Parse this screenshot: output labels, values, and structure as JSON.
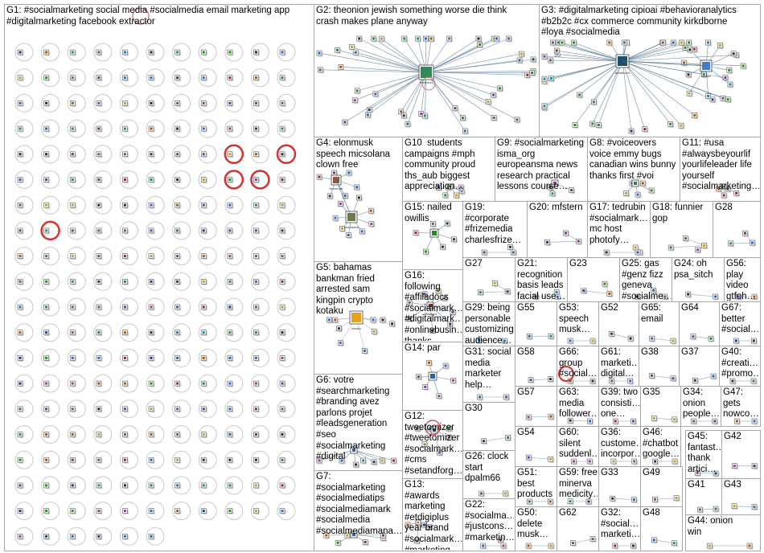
{
  "groups": [
    {
      "id": "G1",
      "label": "G1: #socialmarketing social media #socialmedia email marketing app\n#digitalmarketing facebook extractor"
    },
    {
      "id": "G2",
      "label": "G2: theonion jewish something worse die think\ncrash makes plane anyway"
    },
    {
      "id": "G3",
      "label": "G3: #digitalmarketing cipioai #behavioranalytics\n#b2b2c #cx commerce community kirkdborne\n#loya #socialmedia"
    },
    {
      "id": "G4",
      "label": "G4: elonmusk\nspeech micsolana\nclown free"
    },
    {
      "id": "G10",
      "label": "G10  students\ncampaigns #mph\ncommunity proud\nths_aub biggest\nappreciation…"
    },
    {
      "id": "G9",
      "label": "G9: #socialmarketing\nisma_org\neuropeansma news\nresearch practical\nlessons course…"
    },
    {
      "id": "G8",
      "label": "G8: #voiceovers\nvoice emmy bugs\ncanadian wins bunny\nthanks first #voi"
    },
    {
      "id": "G11",
      "label": "G11: #usa\n#alwaysbeyourlif\nyourlifeleader life\nyourself\n#socialmarketing…"
    },
    {
      "id": "G15",
      "label": "G15: nailed\nowillis"
    },
    {
      "id": "G19",
      "label": "G19:\n#corporate\n#frizemedia\ncharlesfrize…"
    },
    {
      "id": "G20",
      "label": "G20: mfstern"
    },
    {
      "id": "G17",
      "label": "G17: tedrubin\n#socialmark…\nmc host\nphotofy…"
    },
    {
      "id": "G18",
      "label": "G18: funnier\ngop"
    },
    {
      "id": "G28",
      "label": "G28"
    },
    {
      "id": "G5",
      "label": "G5: bahamas\nbankman fried\narrested sam\nkingpin crypto\nkotaku"
    },
    {
      "id": "G16",
      "label": "G16: following\n#affiladocs\n#socialmark…\n#digitalmark…\n#onlinebusin…\nthanks"
    },
    {
      "id": "G27",
      "label": "G27"
    },
    {
      "id": "G21",
      "label": "G21:\nrecognition\nbasis leads\nfacial use…"
    },
    {
      "id": "G23",
      "label": "G23"
    },
    {
      "id": "G25",
      "label": "G25: gas\n#genz fizz\ngeneva\n#socialme…"
    },
    {
      "id": "G24",
      "label": "G24: oh\npsa_sitch"
    },
    {
      "id": "G56",
      "label": "G56:\nplay\nvideo\ngtfoh…"
    },
    {
      "id": "G29",
      "label": "G29: being\npersonable\ncustomizing\naudience…"
    },
    {
      "id": "G55",
      "label": "G55"
    },
    {
      "id": "G53",
      "label": "G53:\nspeech\nmusk…"
    },
    {
      "id": "G52",
      "label": "G52"
    },
    {
      "id": "G65",
      "label": "G65:\nemail"
    },
    {
      "id": "G64",
      "label": "G64"
    },
    {
      "id": "G67",
      "label": "G67:\nbetter\n#social…"
    },
    {
      "id": "G14",
      "label": "G14: par"
    },
    {
      "id": "G31",
      "label": "G31: social\nmedia\nmarketer\nhelp…"
    },
    {
      "id": "G58",
      "label": "G58"
    },
    {
      "id": "G66",
      "label": "G66:\ngroup\n#social…"
    },
    {
      "id": "G61",
      "label": "G61:\nmarketi…\ndigital…"
    },
    {
      "id": "G38",
      "label": "G38"
    },
    {
      "id": "G37",
      "label": "G37"
    },
    {
      "id": "G40",
      "label": "G40:\n#creati…\n#promo…"
    },
    {
      "id": "G6",
      "label": "G6: votre\n#searchmarketing\n#branding avez\nparlons projet\n#leadsgeneration\n#seo\n#socialmarketing\n#digital"
    },
    {
      "id": "G57",
      "label": "G57"
    },
    {
      "id": "G63",
      "label": "G63:\nmedia\nfollower…"
    },
    {
      "id": "G39",
      "label": "G39: two\nconsisti…\none…"
    },
    {
      "id": "G35",
      "label": "G35"
    },
    {
      "id": "G34",
      "label": "G34:\nonion\npeople…"
    },
    {
      "id": "G47",
      "label": "G47:\ngets\nnowco…"
    },
    {
      "id": "G30",
      "label": "G30"
    },
    {
      "id": "G12",
      "label": "G12:\ntweetomizer\n#tweetomizer\n#socialmark…\n#cms\n#setandforg…"
    },
    {
      "id": "G54",
      "label": "G54"
    },
    {
      "id": "G60",
      "label": "G60:\nsilent\nsuddenl…"
    },
    {
      "id": "G36",
      "label": "G36:\ncustome…\nincorpor…"
    },
    {
      "id": "G46",
      "label": "G46:\n#chatbot\ngoogle…"
    },
    {
      "id": "G45",
      "label": "G45:\nfantast…\nthank\nartici…"
    },
    {
      "id": "G42",
      "label": "G42"
    },
    {
      "id": "G26",
      "label": "G26: clock\nstart\ndpalm66"
    },
    {
      "id": "G51",
      "label": "G51:\nbest\nproducts"
    },
    {
      "id": "G59",
      "label": "G59: free\nminerva\nmedicity…"
    },
    {
      "id": "G33",
      "label": "G33"
    },
    {
      "id": "G49",
      "label": "G49"
    },
    {
      "id": "G41",
      "label": "G41"
    },
    {
      "id": "G43",
      "label": "G43"
    },
    {
      "id": "G7",
      "label": "G7:\n#socialmarketing\n#socialmediatips\n#socialmediamark\n#socialmedia\n#socialmediamana…"
    },
    {
      "id": "G13",
      "label": "G13: #awards\nmarketing\n#etdigiplus\nyear brand\n#socialmark…\n#marketing…"
    },
    {
      "id": "G22",
      "label": "G22:\n#socialma…\n#justcons…\n#marketin…"
    },
    {
      "id": "G50",
      "label": "G50:\ndelete\nmusk…"
    },
    {
      "id": "G62",
      "label": "G62"
    },
    {
      "id": "G32",
      "label": "G32:\n#social…\nmarketi…"
    },
    {
      "id": "G48",
      "label": "G48"
    },
    {
      "id": "G44",
      "label": "G44: onion\nwin"
    }
  ],
  "hub_labels": {
    "G2": "theonion",
    "G3": "kirkdborne",
    "G3b": "cipioai",
    "G4a": "elonmusk",
    "G4b": "micsolana",
    "G5": "kotaku",
    "G16": "affiladocs"
  },
  "colors": {
    "cell_border": "#a8a8a8",
    "edge": "#4f6f8f",
    "edge_light": "#9aa8b8",
    "selfloop_red": "#d63030",
    "selfloop_grey": "#c8c8c8"
  }
}
